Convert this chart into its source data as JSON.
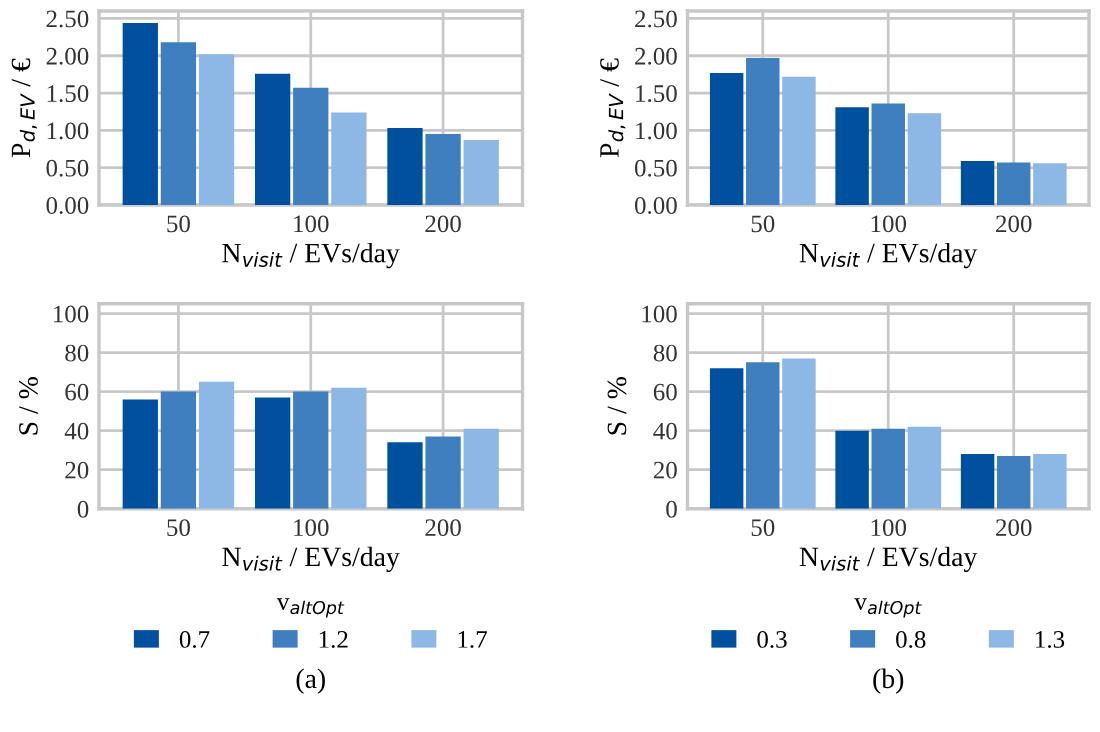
{
  "chart_data": [
    {
      "type": "bar",
      "categories": [
        "50",
        "100",
        "200"
      ],
      "xlabel": "N$_{visit}$ / EVs/day",
      "ylabel": "P$_{d,EV}$ / €",
      "ylim": [
        0,
        2.6
      ],
      "yticks": [
        {
          "value": 0,
          "label": "0.00"
        },
        {
          "value": 0.5,
          "label": "0.50"
        },
        {
          "value": 1,
          "label": "1.00"
        },
        {
          "value": 1.5,
          "label": "1.50"
        },
        {
          "value": 2,
          "label": "2.00"
        },
        {
          "value": 2.5,
          "label": "2.50"
        }
      ],
      "grid": true,
      "series": [
        {
          "color": "#0050a0",
          "values": [
            2.44,
            1.76,
            1.03
          ]
        },
        {
          "color": "#3f7fbf",
          "values": [
            2.18,
            1.57,
            0.95
          ]
        },
        {
          "color": "#8db8e6",
          "values": [
            2.02,
            1.24,
            0.87
          ]
        }
      ]
    },
    {
      "type": "bar",
      "categories": [
        "50",
        "100",
        "200"
      ],
      "xlabel": "N$_{visit}$ / EVs/day",
      "ylabel": "P$_{d,EV}$ / €",
      "ylim": [
        0,
        2.6
      ],
      "yticks": [
        {
          "value": 0,
          "label": "0.00"
        },
        {
          "value": 0.5,
          "label": "0.50"
        },
        {
          "value": 1,
          "label": "1.00"
        },
        {
          "value": 1.5,
          "label": "1.50"
        },
        {
          "value": 2,
          "label": "2.00"
        },
        {
          "value": 2.5,
          "label": "2.50"
        }
      ],
      "grid": true,
      "series": [
        {
          "color": "#0050a0",
          "values": [
            1.77,
            1.31,
            0.59
          ]
        },
        {
          "color": "#3f7fbf",
          "values": [
            1.97,
            1.36,
            0.57
          ]
        },
        {
          "color": "#8db8e6",
          "values": [
            1.72,
            1.23,
            0.56
          ]
        }
      ]
    },
    {
      "type": "bar",
      "categories": [
        "50",
        "100",
        "200"
      ],
      "xlabel": "N$_{visit}$ / EVs/day",
      "ylabel": "S / %",
      "ylim": [
        0,
        105
      ],
      "yticks": [
        0,
        20,
        40,
        60,
        80,
        100
      ],
      "grid": true,
      "legend": "bottom",
      "legend_title": "v$_{altOpt}$",
      "annotations": [
        "(a)"
      ],
      "series": [
        {
          "name": "0.7",
          "color": "#0050a0",
          "values": [
            56,
            57,
            34
          ]
        },
        {
          "name": "1.2",
          "color": "#3f7fbf",
          "values": [
            60,
            60,
            37
          ]
        },
        {
          "name": "1.7",
          "color": "#8db8e6",
          "values": [
            65,
            62,
            41
          ]
        }
      ]
    },
    {
      "type": "bar",
      "categories": [
        "50",
        "100",
        "200"
      ],
      "xlabel": "N$_{visit}$ / EVs/day",
      "ylabel": "S / %",
      "ylim": [
        0,
        105
      ],
      "yticks": [
        0,
        20,
        40,
        60,
        80,
        100
      ],
      "grid": true,
      "legend": "bottom",
      "legend_title": "v$_{altOpt}$",
      "annotations": [
        "(b)"
      ],
      "series": [
        {
          "name": "0.3",
          "color": "#0050a0",
          "values": [
            72,
            40,
            28
          ]
        },
        {
          "name": "0.8",
          "color": "#3f7fbf",
          "values": [
            75,
            41,
            27
          ]
        },
        {
          "name": "1.3",
          "color": "#8db8e6",
          "values": [
            77,
            42,
            28
          ]
        }
      ]
    }
  ]
}
